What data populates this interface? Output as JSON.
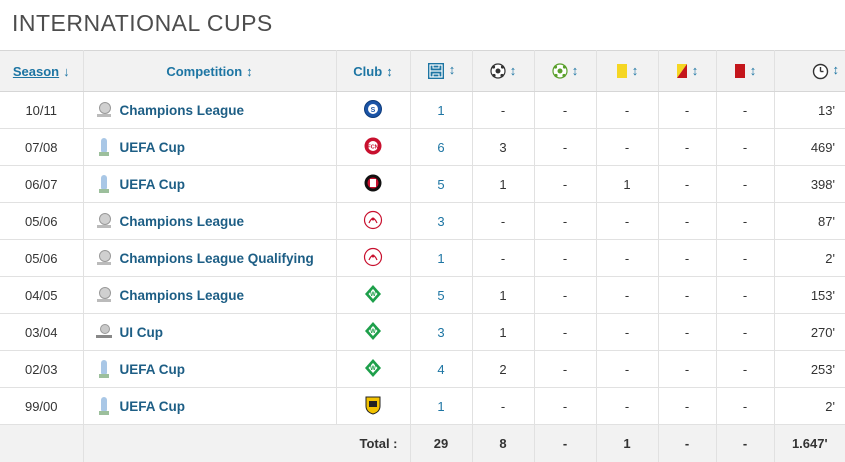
{
  "section_title": "INTERNATIONAL CUPS",
  "headers": {
    "season": "Season",
    "competition": "Competition",
    "club": "Club",
    "sort_season": "↓",
    "sort": "↕"
  },
  "header_icons": [
    "appearances-icon",
    "goals-icon",
    "assists-icon",
    "yellow-card-icon",
    "second-yellow-card-icon",
    "red-card-icon",
    "minutes-clock-icon"
  ],
  "rows": [
    {
      "season": "10/11",
      "competition": "Champions League",
      "comp_icon": "champions-league-icon",
      "club_icon": "schalke-badge-icon",
      "apps": "1",
      "goals": "-",
      "assists": "-",
      "yellow": "-",
      "second_yellow": "-",
      "red": "-",
      "minutes": "13'"
    },
    {
      "season": "07/08",
      "competition": "UEFA Cup",
      "comp_icon": "uefa-cup-icon",
      "club_icon": "nuernberg-badge-icon",
      "apps": "6",
      "goals": "3",
      "assists": "-",
      "yellow": "-",
      "second_yellow": "-",
      "red": "-",
      "minutes": "469'"
    },
    {
      "season": "06/07",
      "competition": "UEFA Cup",
      "comp_icon": "uefa-cup-icon",
      "club_icon": "feyenoord-badge-icon",
      "apps": "5",
      "goals": "1",
      "assists": "-",
      "yellow": "1",
      "second_yellow": "-",
      "red": "-",
      "minutes": "398'"
    },
    {
      "season": "05/06",
      "competition": "Champions League",
      "comp_icon": "champions-league-icon",
      "club_icon": "ajax-badge-icon",
      "apps": "3",
      "goals": "-",
      "assists": "-",
      "yellow": "-",
      "second_yellow": "-",
      "red": "-",
      "minutes": "87'"
    },
    {
      "season": "05/06",
      "competition": "Champions League Qualifying",
      "comp_icon": "champions-league-icon",
      "club_icon": "ajax-badge-icon",
      "apps": "1",
      "goals": "-",
      "assists": "-",
      "yellow": "-",
      "second_yellow": "-",
      "red": "-",
      "minutes": "2'"
    },
    {
      "season": "04/05",
      "competition": "Champions League",
      "comp_icon": "champions-league-icon",
      "club_icon": "werder-bremen-badge-icon",
      "apps": "5",
      "goals": "1",
      "assists": "-",
      "yellow": "-",
      "second_yellow": "-",
      "red": "-",
      "minutes": "153'"
    },
    {
      "season": "03/04",
      "competition": "UI Cup",
      "comp_icon": "ui-cup-icon",
      "club_icon": "werder-bremen-badge-icon",
      "apps": "3",
      "goals": "1",
      "assists": "-",
      "yellow": "-",
      "second_yellow": "-",
      "red": "-",
      "minutes": "270'"
    },
    {
      "season": "02/03",
      "competition": "UEFA Cup",
      "comp_icon": "uefa-cup-icon",
      "club_icon": "werder-bremen-badge-icon",
      "apps": "4",
      "goals": "2",
      "assists": "-",
      "yellow": "-",
      "second_yellow": "-",
      "red": "-",
      "minutes": "253'"
    },
    {
      "season": "99/00",
      "competition": "UEFA Cup",
      "comp_icon": "uefa-cup-icon",
      "club_icon": "arminia-bielefeld-badge-icon",
      "apps": "1",
      "goals": "-",
      "assists": "-",
      "yellow": "-",
      "second_yellow": "-",
      "red": "-",
      "minutes": "2'"
    }
  ],
  "totals": {
    "label": "Total :",
    "apps": "29",
    "goals": "8",
    "assists": "-",
    "yellow": "1",
    "second_yellow": "-",
    "red": "-",
    "minutes": "1.647'"
  },
  "colors": {
    "link": "#1d75a3",
    "header_bg": "#f2f2f2",
    "yellow_card": "#f5d623",
    "red_card": "#c4161c"
  }
}
